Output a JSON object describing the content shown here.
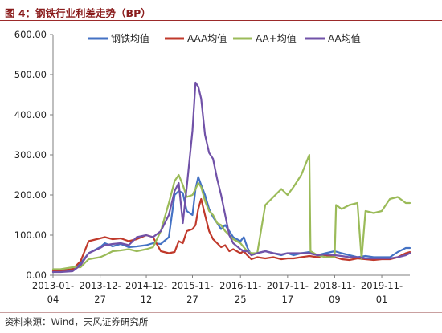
{
  "figure": {
    "title": "图 4：钢铁行业利差走势（BP）",
    "source": "资料来源：Wind，天风证券研究所"
  },
  "chart_data": {
    "type": "line",
    "ylim": [
      0,
      600
    ],
    "yticks": [
      "0.00",
      "100.00",
      "200.00",
      "300.00",
      "400.00",
      "500.00",
      "600.00"
    ],
    "xlim": [
      "2013-01-04",
      "2020-06-01"
    ],
    "xticks": [
      {
        "date": "2013-01-04",
        "label1": "2013-01-",
        "label2": "04"
      },
      {
        "date": "2013-12-27",
        "label1": "2013-12-",
        "label2": "27"
      },
      {
        "date": "2014-12-12",
        "label1": "2014-12-",
        "label2": "12"
      },
      {
        "date": "2015-11-27",
        "label1": "2015-11-",
        "label2": "27"
      },
      {
        "date": "2016-11-25",
        "label1": "2016-11-",
        "label2": "25"
      },
      {
        "date": "2017-11-17",
        "label1": "2017-11-",
        "label2": "17"
      },
      {
        "date": "2018-11-09",
        "label1": "2018-11-",
        "label2": "09"
      },
      {
        "date": "2019-11-01",
        "label1": "2019-11-",
        "label2": "01"
      }
    ],
    "legend_position": "top",
    "series": [
      {
        "name": "钢铁均值",
        "color": "#4472c4",
        "points": [
          [
            "2013-01-04",
            8
          ],
          [
            "2013-03-01",
            10
          ],
          [
            "2013-06-01",
            12
          ],
          [
            "2013-08-01",
            30
          ],
          [
            "2013-10-01",
            55
          ],
          [
            "2013-12-27",
            70
          ],
          [
            "2014-02-01",
            80
          ],
          [
            "2014-04-01",
            72
          ],
          [
            "2014-06-01",
            78
          ],
          [
            "2014-08-01",
            70
          ],
          [
            "2014-10-01",
            72
          ],
          [
            "2014-12-12",
            75
          ],
          [
            "2015-02-01",
            80
          ],
          [
            "2015-04-01",
            78
          ],
          [
            "2015-06-01",
            95
          ],
          [
            "2015-07-15",
            200
          ],
          [
            "2015-08-15",
            210
          ],
          [
            "2015-09-15",
            205
          ],
          [
            "2015-10-15",
            160
          ],
          [
            "2015-11-27",
            150
          ],
          [
            "2015-12-20",
            215
          ],
          [
            "2016-01-10",
            245
          ],
          [
            "2016-02-01",
            225
          ],
          [
            "2016-03-01",
            200
          ],
          [
            "2016-04-01",
            165
          ],
          [
            "2016-05-01",
            145
          ],
          [
            "2016-06-01",
            130
          ],
          [
            "2016-07-01",
            115
          ],
          [
            "2016-08-01",
            125
          ],
          [
            "2016-09-01",
            110
          ],
          [
            "2016-10-01",
            95
          ],
          [
            "2016-11-25",
            85
          ],
          [
            "2016-12-20",
            95
          ],
          [
            "2017-01-15",
            70
          ],
          [
            "2017-02-15",
            50
          ],
          [
            "2017-04-01",
            55
          ],
          [
            "2017-06-01",
            60
          ],
          [
            "2017-08-01",
            55
          ],
          [
            "2017-10-01",
            50
          ],
          [
            "2017-11-17",
            55
          ],
          [
            "2018-01-01",
            50
          ],
          [
            "2018-03-01",
            55
          ],
          [
            "2018-05-01",
            58
          ],
          [
            "2018-07-01",
            50
          ],
          [
            "2018-09-01",
            55
          ],
          [
            "2018-11-09",
            60
          ],
          [
            "2019-01-01",
            55
          ],
          [
            "2019-03-01",
            50
          ],
          [
            "2019-05-01",
            45
          ],
          [
            "2019-07-01",
            48
          ],
          [
            "2019-09-01",
            45
          ],
          [
            "2019-11-01",
            45
          ],
          [
            "2020-01-01",
            45
          ],
          [
            "2020-03-01",
            58
          ],
          [
            "2020-05-01",
            68
          ],
          [
            "2020-06-01",
            68
          ]
        ]
      },
      {
        "name": "AAA均值",
        "color": "#c0392b",
        "points": [
          [
            "2013-01-04",
            10
          ],
          [
            "2013-03-01",
            12
          ],
          [
            "2013-06-01",
            15
          ],
          [
            "2013-08-01",
            35
          ],
          [
            "2013-10-01",
            85
          ],
          [
            "2013-12-27",
            92
          ],
          [
            "2014-02-01",
            95
          ],
          [
            "2014-04-01",
            90
          ],
          [
            "2014-06-01",
            92
          ],
          [
            "2014-08-01",
            85
          ],
          [
            "2014-10-01",
            90
          ],
          [
            "2014-12-12",
            100
          ],
          [
            "2015-02-01",
            95
          ],
          [
            "2015-04-01",
            60
          ],
          [
            "2015-06-01",
            55
          ],
          [
            "2015-07-15",
            58
          ],
          [
            "2015-08-15",
            85
          ],
          [
            "2015-09-15",
            80
          ],
          [
            "2015-10-15",
            110
          ],
          [
            "2015-11-27",
            115
          ],
          [
            "2015-12-20",
            125
          ],
          [
            "2016-01-10",
            165
          ],
          [
            "2016-02-01",
            190
          ],
          [
            "2016-03-01",
            150
          ],
          [
            "2016-04-01",
            110
          ],
          [
            "2016-05-01",
            90
          ],
          [
            "2016-06-01",
            80
          ],
          [
            "2016-07-01",
            70
          ],
          [
            "2016-08-01",
            75
          ],
          [
            "2016-09-01",
            60
          ],
          [
            "2016-10-01",
            65
          ],
          [
            "2016-11-25",
            55
          ],
          [
            "2016-12-20",
            60
          ],
          [
            "2017-01-15",
            50
          ],
          [
            "2017-02-15",
            40
          ],
          [
            "2017-04-01",
            45
          ],
          [
            "2017-06-01",
            42
          ],
          [
            "2017-08-01",
            45
          ],
          [
            "2017-10-01",
            40
          ],
          [
            "2017-11-17",
            42
          ],
          [
            "2018-01-01",
            42
          ],
          [
            "2018-03-01",
            45
          ],
          [
            "2018-05-01",
            48
          ],
          [
            "2018-07-01",
            45
          ],
          [
            "2018-09-01",
            50
          ],
          [
            "2018-11-09",
            45
          ],
          [
            "2019-01-01",
            40
          ],
          [
            "2019-03-01",
            38
          ],
          [
            "2019-05-01",
            42
          ],
          [
            "2019-07-01",
            40
          ],
          [
            "2019-09-01",
            38
          ],
          [
            "2019-11-01",
            40
          ],
          [
            "2020-01-01",
            40
          ],
          [
            "2020-03-01",
            45
          ],
          [
            "2020-05-01",
            55
          ],
          [
            "2020-06-01",
            58
          ]
        ]
      },
      {
        "name": "AA+均值",
        "color": "#9bbb59",
        "points": [
          [
            "2013-01-04",
            15
          ],
          [
            "2013-03-01",
            15
          ],
          [
            "2013-06-01",
            20
          ],
          [
            "2013-08-01",
            20
          ],
          [
            "2013-10-01",
            40
          ],
          [
            "2013-12-27",
            45
          ],
          [
            "2014-02-01",
            50
          ],
          [
            "2014-04-01",
            60
          ],
          [
            "2014-06-01",
            62
          ],
          [
            "2014-08-01",
            65
          ],
          [
            "2014-10-01",
            60
          ],
          [
            "2014-12-12",
            65
          ],
          [
            "2015-02-01",
            70
          ],
          [
            "2015-04-01",
            110
          ],
          [
            "2015-06-01",
            180
          ],
          [
            "2015-07-15",
            235
          ],
          [
            "2015-08-15",
            250
          ],
          [
            "2015-09-15",
            225
          ],
          [
            "2015-10-15",
            195
          ],
          [
            "2015-11-27",
            200
          ],
          [
            "2015-12-20",
            215
          ],
          [
            "2016-01-10",
            230
          ],
          [
            "2016-02-01",
            220
          ],
          [
            "2016-03-01",
            185
          ],
          [
            "2016-04-01",
            160
          ],
          [
            "2016-05-01",
            150
          ],
          [
            "2016-06-01",
            130
          ],
          [
            "2016-07-01",
            125
          ],
          [
            "2016-08-01",
            110
          ],
          [
            "2016-09-01",
            100
          ],
          [
            "2016-10-01",
            90
          ],
          [
            "2016-11-25",
            80
          ],
          [
            "2016-12-20",
            70
          ],
          [
            "2017-01-15",
            60
          ],
          [
            "2017-02-15",
            55
          ],
          [
            "2017-04-01",
            55
          ],
          [
            "2017-06-01",
            175
          ],
          [
            "2017-08-01",
            195
          ],
          [
            "2017-10-01",
            215
          ],
          [
            "2017-11-17",
            200
          ],
          [
            "2018-01-01",
            220
          ],
          [
            "2018-03-01",
            250
          ],
          [
            "2018-05-01",
            300
          ],
          [
            "2018-05-10",
            60
          ],
          [
            "2018-07-01",
            50
          ],
          [
            "2018-09-01",
            45
          ],
          [
            "2018-11-09",
            45
          ],
          [
            "2018-11-20",
            175
          ],
          [
            "2019-01-01",
            165
          ],
          [
            "2019-03-01",
            175
          ],
          [
            "2019-05-01",
            180
          ],
          [
            "2019-06-01",
            40
          ],
          [
            "2019-07-01",
            160
          ],
          [
            "2019-09-01",
            155
          ],
          [
            "2019-11-01",
            160
          ],
          [
            "2020-01-01",
            190
          ],
          [
            "2020-03-01",
            195
          ],
          [
            "2020-05-01",
            180
          ],
          [
            "2020-06-01",
            180
          ]
        ]
      },
      {
        "name": "AA均值",
        "color": "#7152a8",
        "points": [
          [
            "2013-01-04",
            8
          ],
          [
            "2013-03-01",
            8
          ],
          [
            "2013-06-01",
            10
          ],
          [
            "2013-08-01",
            25
          ],
          [
            "2013-10-01",
            55
          ],
          [
            "2013-12-27",
            68
          ],
          [
            "2014-02-01",
            75
          ],
          [
            "2014-04-01",
            78
          ],
          [
            "2014-06-01",
            80
          ],
          [
            "2014-08-01",
            75
          ],
          [
            "2014-10-01",
            95
          ],
          [
            "2014-12-12",
            100
          ],
          [
            "2015-02-01",
            95
          ],
          [
            "2015-04-01",
            110
          ],
          [
            "2015-06-01",
            150
          ],
          [
            "2015-07-15",
            210
          ],
          [
            "2015-08-15",
            230
          ],
          [
            "2015-09-15",
            130
          ],
          [
            "2015-10-15",
            220
          ],
          [
            "2015-11-27",
            360
          ],
          [
            "2015-12-20",
            480
          ],
          [
            "2016-01-10",
            470
          ],
          [
            "2016-02-01",
            440
          ],
          [
            "2016-03-01",
            350
          ],
          [
            "2016-04-01",
            305
          ],
          [
            "2016-05-01",
            290
          ],
          [
            "2016-06-01",
            240
          ],
          [
            "2016-07-01",
            200
          ],
          [
            "2016-08-01",
            150
          ],
          [
            "2016-09-01",
            100
          ],
          [
            "2016-10-01",
            80
          ],
          [
            "2016-11-25",
            65
          ],
          [
            "2016-12-20",
            60
          ],
          [
            "2017-01-15",
            60
          ],
          [
            "2017-02-15",
            50
          ],
          [
            "2017-04-01",
            55
          ],
          [
            "2017-06-01",
            60
          ],
          [
            "2017-08-01",
            55
          ],
          [
            "2017-10-01",
            52
          ],
          [
            "2017-11-17",
            55
          ],
          [
            "2018-01-01",
            55
          ],
          [
            "2018-03-01",
            55
          ],
          [
            "2018-05-01",
            55
          ],
          [
            "2018-07-01",
            50
          ],
          [
            "2018-09-01",
            52
          ],
          [
            "2018-11-09",
            50
          ],
          [
            "2019-01-01",
            48
          ],
          [
            "2019-03-01",
            45
          ],
          [
            "2019-05-01",
            45
          ],
          [
            "2019-07-01",
            42
          ],
          [
            "2019-09-01",
            42
          ],
          [
            "2019-11-01",
            42
          ],
          [
            "2020-01-01",
            42
          ],
          [
            "2020-03-01",
            45
          ],
          [
            "2020-05-01",
            50
          ],
          [
            "2020-06-01",
            55
          ]
        ]
      }
    ]
  }
}
